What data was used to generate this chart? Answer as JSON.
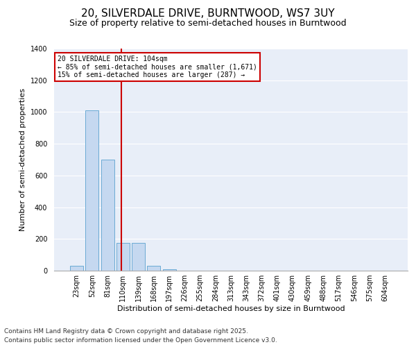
{
  "title": "20, SILVERDALE DRIVE, BURNTWOOD, WS7 3UY",
  "subtitle": "Size of property relative to semi-detached houses in Burntwood",
  "xlabel": "Distribution of semi-detached houses by size in Burntwood",
  "ylabel": "Number of semi-detached properties",
  "categories": [
    "23sqm",
    "52sqm",
    "81sqm",
    "110sqm",
    "139sqm",
    "168sqm",
    "197sqm",
    "226sqm",
    "255sqm",
    "284sqm",
    "313sqm",
    "343sqm",
    "372sqm",
    "401sqm",
    "430sqm",
    "459sqm",
    "488sqm",
    "517sqm",
    "546sqm",
    "575sqm",
    "604sqm"
  ],
  "values": [
    30,
    1010,
    700,
    175,
    175,
    30,
    10,
    0,
    0,
    0,
    0,
    0,
    0,
    0,
    0,
    0,
    0,
    0,
    0,
    0,
    0
  ],
  "bar_color": "#c5d8f0",
  "bar_edge_color": "#6aaad4",
  "property_line_x": 2.9,
  "property_size": "104sqm",
  "annotation_line1": "20 SILVERDALE DRIVE: 104sqm",
  "annotation_line2": "← 85% of semi-detached houses are smaller (1,671)",
  "annotation_line3": "15% of semi-detached houses are larger (287) →",
  "annotation_box_color": "#ffffff",
  "annotation_box_edge_color": "#cc0000",
  "line_color": "#cc0000",
  "ylim": [
    0,
    1400
  ],
  "yticks": [
    0,
    200,
    400,
    600,
    800,
    1000,
    1200,
    1400
  ],
  "background_color": "#e8eef8",
  "footer_line1": "Contains HM Land Registry data © Crown copyright and database right 2025.",
  "footer_line2": "Contains public sector information licensed under the Open Government Licence v3.0.",
  "title_fontsize": 11,
  "subtitle_fontsize": 9,
  "label_fontsize": 8,
  "tick_fontsize": 7,
  "footer_fontsize": 6.5
}
